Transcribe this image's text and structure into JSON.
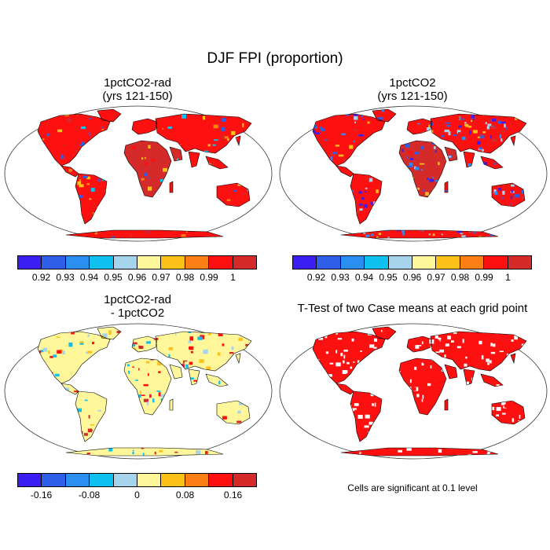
{
  "title": "DJF FPI (proportion)",
  "panels": [
    {
      "id": "rad",
      "title_line1": "1pctCO2-rad",
      "title_line2": "(yrs 121-150)",
      "dominant": "warm"
    },
    {
      "id": "co2",
      "title_line1": "1pctCO2",
      "title_line2": "(yrs 121-150)",
      "dominant": "mixed"
    },
    {
      "id": "diff",
      "title_line1": "1pctCO2-rad",
      "title_line2": "- 1pctCO2",
      "dominant": "neutral"
    },
    {
      "id": "ttest",
      "title_line1": "T-Test of two Case means at each grid point",
      "title_line2": "",
      "dominant": "significant"
    }
  ],
  "colorbar_top": {
    "colors": [
      "#3a1ef2",
      "#2f5fe8",
      "#2a8ff0",
      "#10c0f0",
      "#a6d4ec",
      "#fff79a",
      "#fcc21a",
      "#fc7f16",
      "#fc1010",
      "#d42a2a"
    ],
    "tick_labels": [
      "0.92",
      "0.93",
      "0.94",
      "0.95",
      "0.96",
      "0.97",
      "0.98",
      "0.99",
      "1"
    ]
  },
  "colorbar_diff": {
    "colors": [
      "#3a1ef2",
      "#2f5fe8",
      "#2a8ff0",
      "#10c0f0",
      "#a6d4ec",
      "#fff79a",
      "#fcc21a",
      "#fc7f16",
      "#fc1010",
      "#d42a2a"
    ],
    "tick_labels": [
      "-0.16",
      "-0.08",
      "0",
      "0.08",
      "0.16"
    ]
  },
  "significance_note": "Cells are significant at 0.1 level",
  "palette": {
    "significant": "#fc1010",
    "ocean": "#ffffff",
    "coast": "#000000"
  }
}
